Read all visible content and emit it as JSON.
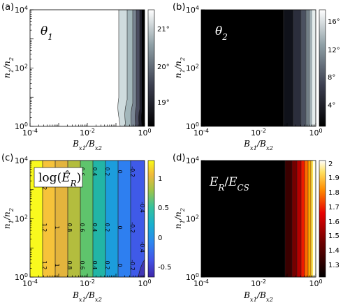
{
  "chart_data": [
    {
      "type": "heatmap",
      "panel_label": "(a)",
      "title": "θ1",
      "xlabel": "Bx1/Bx2",
      "ylabel": "n1/n2",
      "x_scale": "log",
      "y_scale": "log",
      "xlim": [
        0.0001,
        1
      ],
      "ylim": [
        1,
        10000
      ],
      "x_tick_labels": [
        "10-4",
        "10-2",
        "100"
      ],
      "y_tick_labels": [
        "100",
        "102",
        "104"
      ],
      "colorbar_ticks": [
        "21°",
        "20°",
        "19°"
      ],
      "colorbar_range": [
        18.3,
        21.8
      ],
      "title_color": "#000000"
    },
    {
      "type": "heatmap",
      "panel_label": "(b)",
      "title": "θ2",
      "xlabel": "Bx1/Bx2",
      "ylabel": "n1/n2",
      "x_scale": "log",
      "y_scale": "log",
      "xlim": [
        0.0001,
        1
      ],
      "ylim": [
        1,
        10000
      ],
      "x_tick_labels": [
        "10-4",
        "10-2",
        "100"
      ],
      "y_tick_labels": [
        "100",
        "102",
        "104"
      ],
      "colorbar_ticks": [
        "16°",
        "12°",
        "8°",
        "4°"
      ],
      "colorbar_range": [
        0,
        17
      ],
      "title_color": "#ffffff"
    },
    {
      "type": "heatmap",
      "panel_label": "(c)",
      "title": "log(ÊR)",
      "xlabel": "Bx1/Bx2",
      "ylabel": "n1/n2",
      "x_scale": "log",
      "y_scale": "log",
      "xlim": [
        0.0001,
        1
      ],
      "ylim": [
        1,
        10000
      ],
      "x_tick_labels": [
        "10-4",
        "10-2",
        "100"
      ],
      "y_tick_labels": [
        "100",
        "102",
        "104"
      ],
      "colorbar_ticks": [
        "1",
        "0.5",
        "0",
        "-0.5"
      ],
      "colorbar_range": [
        -0.75,
        1.2
      ],
      "contour_labels": [
        "1.2",
        "1",
        "0.8",
        "0.6",
        "0.4",
        "0.2",
        "0",
        "-0.2",
        "-0.4"
      ],
      "title_color": "#000000"
    },
    {
      "type": "heatmap",
      "panel_label": "(d)",
      "title": "ER/ECS",
      "xlabel": "Bx1/Bx2",
      "ylabel": "n1/n2",
      "x_scale": "log",
      "y_scale": "log",
      "xlim": [
        0.0001,
        1
      ],
      "ylim": [
        1,
        10000
      ],
      "x_tick_labels": [
        "10-4",
        "10-2",
        "100"
      ],
      "y_tick_labels": [
        "100",
        "102",
        "104"
      ],
      "colorbar_ticks": [
        "2",
        "1.9",
        "1.8",
        "1.7",
        "1.6",
        "1.5",
        "1.4",
        "1.3"
      ],
      "colorbar_range": [
        1.22,
        2.02
      ],
      "title_color": "#ffffff"
    }
  ]
}
